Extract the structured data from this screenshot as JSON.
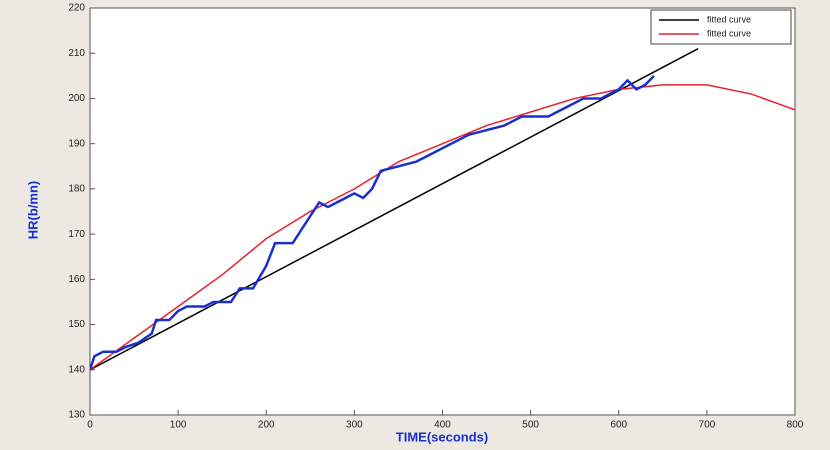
{
  "chart_data": {
    "type": "line",
    "xlabel": "TIME(seconds)",
    "ylabel": "HR(b/mn)",
    "xlim": [
      0,
      800
    ],
    "xticks": [
      0,
      100,
      200,
      300,
      400,
      500,
      600,
      700,
      800
    ],
    "ylim": [
      130,
      220
    ],
    "yticks": [
      130,
      140,
      150,
      160,
      170,
      180,
      190,
      200,
      210,
      220
    ],
    "legend": "upper right",
    "series": [
      {
        "name": "fitted curve",
        "color": "#000000",
        "x": [
          0,
          690
        ],
        "values": [
          140,
          211
        ]
      },
      {
        "name": "fitted curve",
        "color": "#e8202a",
        "x": [
          0,
          50,
          100,
          150,
          200,
          250,
          300,
          350,
          400,
          450,
          500,
          550,
          600,
          650,
          700,
          750,
          800
        ],
        "values": [
          140,
          147,
          154,
          161,
          169,
          175,
          180,
          186,
          190,
          194,
          197,
          200,
          202,
          203,
          203,
          201,
          197.5
        ]
      },
      {
        "name": null,
        "color": "#1a2fd0",
        "x": [
          0,
          5,
          15,
          30,
          40,
          55,
          70,
          75,
          90,
          100,
          110,
          130,
          140,
          160,
          170,
          185,
          200,
          210,
          230,
          240,
          260,
          270,
          280,
          300,
          310,
          320,
          330,
          350,
          370,
          380,
          400,
          430,
          470,
          490,
          520,
          540,
          560,
          580,
          600,
          610,
          620,
          630,
          640
        ],
        "values": [
          140,
          143,
          144,
          144,
          145,
          146,
          148,
          151,
          151,
          153,
          154,
          154,
          155,
          155,
          158,
          158,
          163,
          168,
          168,
          171,
          177,
          176,
          177,
          179,
          178,
          180,
          184,
          185,
          186,
          187,
          189,
          192,
          194,
          196,
          196,
          198,
          200,
          200,
          202,
          204,
          202,
          203,
          205
        ]
      }
    ]
  }
}
